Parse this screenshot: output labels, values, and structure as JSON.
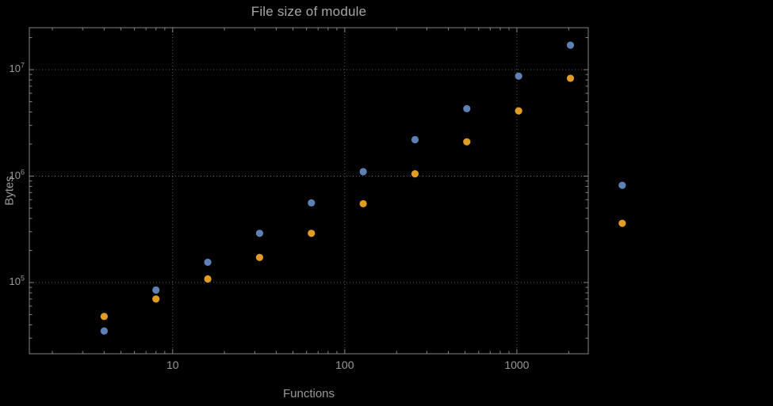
{
  "chart_data": {
    "type": "scatter",
    "title": "File size of module",
    "xlabel": "Functions",
    "ylabel": "Bytes",
    "x_scale": "log",
    "y_scale": "log",
    "xlim": [
      1.47,
      2600
    ],
    "ylim": [
      21400,
      24800000
    ],
    "grid": "dotted-major",
    "background": "#000000",
    "frame_color": "#858585",
    "x_tick_labels": [
      "10",
      "100",
      "1000"
    ],
    "x_tick_values": [
      10,
      100,
      1000
    ],
    "y_tick_labels": [
      {
        "base": "10",
        "exp": "5"
      },
      {
        "base": "10",
        "exp": "6"
      },
      {
        "base": "10",
        "exp": "7"
      }
    ],
    "y_tick_values": [
      100000,
      1000000,
      10000000
    ],
    "series": [
      {
        "name": "blue",
        "color": "#5e81b5",
        "x": [
          4,
          8,
          16,
          32,
          64,
          128,
          256,
          512,
          1024,
          2048,
          4096
        ],
        "y": [
          35000,
          85000,
          155000,
          290000,
          560000,
          1100000,
          2200000,
          4300000,
          8700000,
          17000000,
          820000
        ]
      },
      {
        "name": "orange",
        "color": "#e19c24",
        "x": [
          4,
          8,
          16,
          32,
          64,
          128,
          256,
          512,
          1024,
          2048,
          4096
        ],
        "y": [
          48000,
          70000,
          108000,
          172000,
          290000,
          550000,
          1050000,
          2100000,
          4100000,
          8300000,
          360000
        ]
      }
    ]
  }
}
